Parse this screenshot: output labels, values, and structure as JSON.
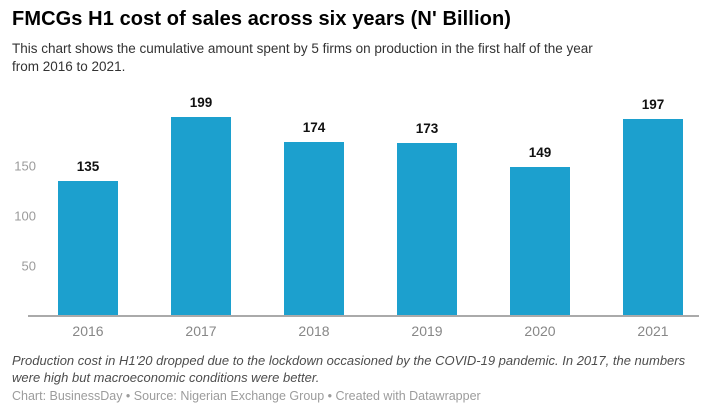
{
  "header": {
    "title": "FMCGs H1 cost of sales across six years (N' Billion)",
    "subtitle": "This chart shows the cumulative amount spent by 5 firms on production in the first half of the year from 2016 to 2021."
  },
  "chart_data": {
    "type": "bar",
    "categories": [
      "2016",
      "2017",
      "2018",
      "2019",
      "2020",
      "2021"
    ],
    "values": [
      135,
      199,
      174,
      173,
      149,
      197
    ],
    "title": "FMCGs H1 cost of sales across six years (N' Billion)",
    "xlabel": "",
    "ylabel": "",
    "ylim": [
      0,
      210
    ],
    "yticks": [
      50,
      100,
      150
    ],
    "bar_color": "#1CA0CE",
    "grid": false,
    "data_labels": true,
    "legend": "none"
  },
  "footer": {
    "note": "Production cost in H1'20 dropped due to the lockdown occasioned by the COVID-19 pandemic. In 2017, the numbers were high but macroeconomic conditions were better.",
    "credits": "Chart: BusinessDay • Source: Nigerian Exchange Group • Created with Datawrapper"
  }
}
